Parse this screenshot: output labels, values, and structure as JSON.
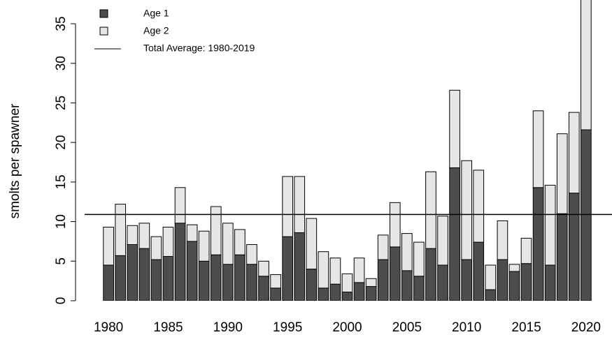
{
  "chart_data": {
    "type": "bar",
    "stacked": true,
    "y_label": "smolts per spawner",
    "x": [
      1980,
      1981,
      1982,
      1983,
      1984,
      1985,
      1986,
      1987,
      1988,
      1989,
      1990,
      1991,
      1992,
      1993,
      1994,
      1995,
      1996,
      1997,
      1998,
      1999,
      2000,
      2001,
      2002,
      2003,
      2004,
      2005,
      2006,
      2007,
      2008,
      2009,
      2010,
      2011,
      2012,
      2013,
      2014,
      2015,
      2016,
      2017,
      2018,
      2019,
      2020
    ],
    "series": [
      {
        "name": "Age 1",
        "color": "#4d4d4d",
        "values": [
          4.5,
          5.7,
          7.1,
          6.6,
          5.2,
          5.6,
          9.8,
          7.5,
          5.0,
          5.8,
          4.6,
          5.8,
          4.6,
          3.1,
          1.6,
          8.1,
          8.6,
          4.0,
          1.6,
          2.1,
          1.1,
          2.3,
          1.8,
          5.2,
          6.8,
          3.8,
          3.1,
          6.6,
          4.5,
          16.8,
          5.2,
          7.4,
          1.4,
          5.2,
          3.7,
          4.7,
          14.3,
          4.5,
          11.0,
          13.6,
          21.6
        ]
      },
      {
        "name": "Age 2",
        "color": "#e6e6e6",
        "values": [
          4.8,
          6.5,
          2.4,
          3.2,
          2.9,
          3.7,
          4.5,
          2.1,
          3.8,
          6.1,
          5.2,
          3.2,
          2.5,
          1.9,
          1.7,
          7.6,
          7.1,
          6.4,
          4.6,
          3.3,
          2.3,
          3.1,
          1.0,
          3.1,
          5.6,
          4.7,
          4.3,
          9.7,
          6.2,
          9.8,
          12.5,
          9.1,
          3.1,
          4.9,
          0.9,
          3.2,
          9.7,
          10.1,
          10.1,
          10.2,
          17
        ]
      }
    ],
    "average": {
      "name": "Total Average: 1980-2019",
      "value": 10.9,
      "color": "#000000"
    },
    "xlim": [
      1978,
      2022
    ],
    "xticks": [
      1980,
      1985,
      1990,
      1995,
      2000,
      2005,
      2010,
      2015,
      2020
    ],
    "ylim": [
      0,
      38
    ],
    "yticks": [
      0,
      5,
      10,
      15,
      20,
      25,
      30,
      35
    ],
    "legend": "top-left"
  }
}
